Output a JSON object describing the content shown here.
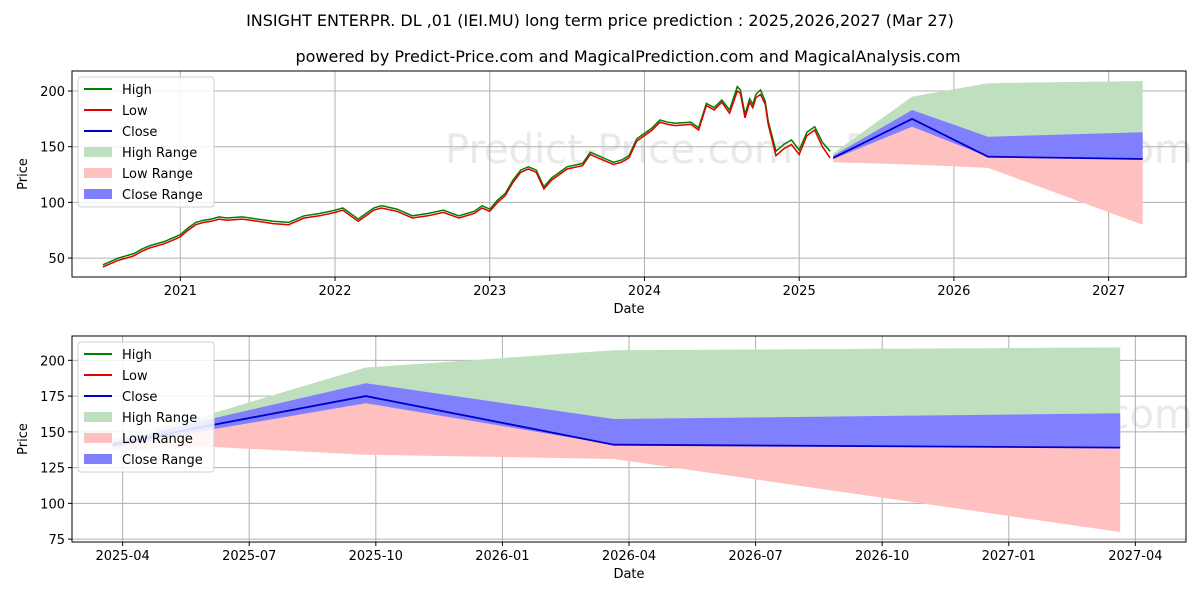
{
  "figure": {
    "title": "INSIGHT ENTERPR. DL ,01 (IEI.MU) long term price prediction : 2025,2026,2027 (Mar 27)",
    "subtitle": "powered by Predict-Price.com and MagicalPrediction.com and MagicalAnalysis.com",
    "watermark": "Predict-Price.com",
    "colors": {
      "high": "#008000",
      "low": "#e00000",
      "close": "#0000cc",
      "high_range": "#bfe0bf",
      "low_range": "#ffc0c0",
      "close_range": "#8080ff",
      "grid": "#b0b0b0"
    }
  },
  "legend": {
    "placement": "top-left",
    "items": [
      {
        "label": "High",
        "kind": "line",
        "color": "#008000"
      },
      {
        "label": "Low",
        "kind": "line",
        "color": "#e00000"
      },
      {
        "label": "Close",
        "kind": "line",
        "color": "#0000cc"
      },
      {
        "label": "High Range",
        "kind": "patch",
        "color": "#bfe0bf"
      },
      {
        "label": "Low Range",
        "kind": "patch",
        "color": "#ffc0c0"
      },
      {
        "label": "Close Range",
        "kind": "patch",
        "color": "#8080ff"
      }
    ]
  },
  "chart_data": [
    {
      "type": "line",
      "xlabel": "Date",
      "ylabel": "Price",
      "xlim": [
        2020.3,
        2027.5
      ],
      "ylim": [
        33,
        218
      ],
      "xticks": [
        2021,
        2022,
        2023,
        2024,
        2025,
        2026,
        2027
      ],
      "xtick_labels": [
        "2021",
        "2022",
        "2023",
        "2024",
        "2025",
        "2026",
        "2027"
      ],
      "yticks": [
        50,
        100,
        150,
        200
      ],
      "grid": true,
      "history": {
        "x": [
          2020.5,
          2020.55,
          2020.6,
          2020.65,
          2020.7,
          2020.75,
          2020.8,
          2020.85,
          2020.9,
          2020.95,
          2021.0,
          2021.05,
          2021.1,
          2021.15,
          2021.2,
          2021.25,
          2021.3,
          2021.4,
          2021.5,
          2021.6,
          2021.7,
          2021.8,
          2021.9,
          2022.0,
          2022.05,
          2022.1,
          2022.15,
          2022.2,
          2022.25,
          2022.3,
          2022.4,
          2022.5,
          2022.6,
          2022.7,
          2022.8,
          2022.9,
          2022.95,
          2023.0,
          2023.05,
          2023.1,
          2023.15,
          2023.2,
          2023.25,
          2023.3,
          2023.35,
          2023.4,
          2023.5,
          2023.6,
          2023.65,
          2023.7,
          2023.75,
          2023.8,
          2023.85,
          2023.9,
          2023.95,
          2024.0,
          2024.05,
          2024.1,
          2024.15,
          2024.2,
          2024.3,
          2024.35,
          2024.4,
          2024.45,
          2024.5,
          2024.55,
          2024.6,
          2024.62,
          2024.65,
          2024.68,
          2024.7,
          2024.72,
          2024.75,
          2024.78,
          2024.8,
          2024.85,
          2024.9,
          2024.95,
          2025.0,
          2025.05,
          2025.1,
          2025.15,
          2025.2
        ],
        "low": [
          42,
          45,
          48,
          50,
          52,
          56,
          59,
          61,
          63,
          66,
          69,
          75,
          80,
          82,
          83,
          85,
          84,
          85,
          83,
          81,
          80,
          86,
          88,
          91,
          93,
          88,
          83,
          88,
          93,
          95,
          92,
          86,
          88,
          91,
          86,
          90,
          95,
          92,
          100,
          106,
          118,
          127,
          130,
          127,
          112,
          120,
          130,
          133,
          143,
          140,
          137,
          134,
          136,
          140,
          155,
          160,
          165,
          172,
          170,
          169,
          170,
          165,
          187,
          183,
          190,
          180,
          200,
          198,
          176,
          190,
          185,
          194,
          197,
          188,
          170,
          142,
          148,
          152,
          143,
          160,
          165,
          150,
          140
        ],
        "high": [
          44,
          47,
          50,
          52,
          54,
          58,
          61,
          63,
          65,
          68,
          71,
          77,
          82,
          84,
          85,
          87,
          86,
          87,
          85,
          83,
          82,
          88,
          90,
          93,
          95,
          90,
          85,
          90,
          95,
          97,
          94,
          88,
          90,
          93,
          88,
          92,
          97,
          94,
          102,
          108,
          120,
          129,
          132,
          129,
          114,
          122,
          132,
          135,
          145,
          142,
          139,
          136,
          138,
          142,
          157,
          162,
          167,
          174,
          172,
          171,
          172,
          167,
          189,
          185,
          192,
          183,
          204,
          201,
          179,
          193,
          188,
          197,
          201,
          191,
          173,
          146,
          152,
          156,
          147,
          163,
          168,
          154,
          146
        ]
      },
      "forecast": {
        "x": [
          2025.22,
          2025.73,
          2026.22,
          2027.22
        ],
        "close": [
          140,
          175,
          141,
          139
        ],
        "high_range_upper": [
          144,
          195,
          207,
          209
        ],
        "low_range_lower": [
          136,
          134,
          131,
          80
        ],
        "close_range_upper": [
          142,
          183,
          159,
          163
        ],
        "close_range_lower": [
          139,
          168,
          141,
          139
        ]
      }
    },
    {
      "type": "line",
      "xlabel": "Date",
      "ylabel": "Price",
      "xlim": [
        2025.15,
        2027.35
      ],
      "ylim": [
        73,
        217
      ],
      "xticks": [
        2025.25,
        2025.5,
        2025.75,
        2026.0,
        2026.25,
        2026.5,
        2026.75,
        2027.0,
        2027.25
      ],
      "xtick_labels": [
        "2025-04",
        "2025-07",
        "2025-10",
        "2026-01",
        "2026-04",
        "2026-07",
        "2026-10",
        "2027-01",
        "2027-04"
      ],
      "yticks": [
        75,
        100,
        125,
        150,
        175,
        200
      ],
      "grid": true,
      "forecast": {
        "x": [
          2025.23,
          2025.4,
          2025.73,
          2026.22,
          2027.22
        ],
        "close": [
          141,
          153,
          175,
          141,
          139
        ],
        "high_range_upper": [
          145,
          160,
          195,
          207,
          209
        ],
        "low_range_lower": [
          137,
          140,
          134,
          131,
          80
        ],
        "close_range_upper": [
          143,
          157,
          184,
          159,
          163
        ],
        "close_range_lower": [
          139,
          150,
          170,
          141,
          139
        ]
      }
    }
  ]
}
